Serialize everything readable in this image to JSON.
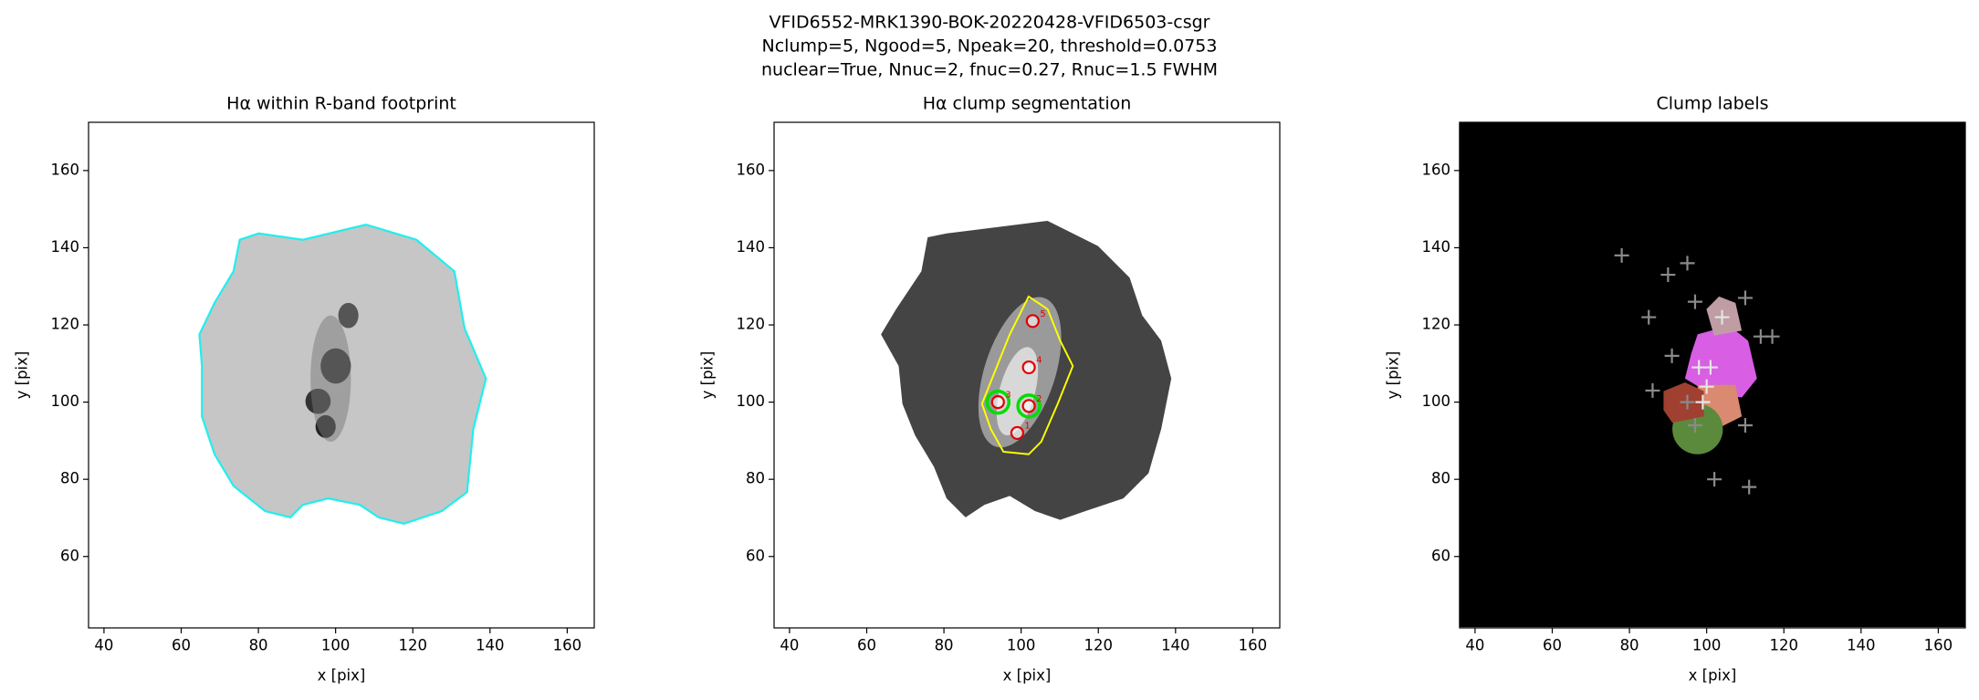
{
  "suptitle": [
    "VFID6552-MRK1390-BOK-20220428-VFID6503-csgr",
    "Nclump=5, Ngood=5, Npeak=20, threshold=0.0753",
    "nuclear=True, Nnuc=2, fnuc=0.27, Rnuc=1.5 FWHM"
  ],
  "chart_data": [
    {
      "type": "image",
      "title": "Hα within R-band footprint",
      "xlabel": "x [pix]",
      "ylabel": "y [pix]",
      "xlim": [
        36,
        167
      ],
      "ylim": [
        41.5,
        172.5
      ],
      "xticks": [
        40,
        60,
        80,
        100,
        120,
        140,
        160
      ],
      "yticks": [
        60,
        80,
        100,
        120,
        140,
        160
      ]
    },
    {
      "type": "image",
      "title": "Hα clump segmentation",
      "xlabel": "x [pix]",
      "ylabel": "y [pix]",
      "xlim": [
        36,
        167
      ],
      "ylim": [
        41.5,
        172.5
      ],
      "xticks": [
        40,
        60,
        80,
        100,
        120,
        140,
        160
      ],
      "yticks": [
        60,
        80,
        100,
        120,
        140,
        160
      ],
      "points": {
        "x": [
          99,
          102,
          94,
          102,
          103
        ],
        "y": [
          92,
          99,
          100,
          109,
          121
        ],
        "labels": [
          "1",
          "2",
          "3",
          "4",
          "5"
        ],
        "color": "#e00000"
      },
      "nuclei": {
        "x": [
          94,
          102
        ],
        "y": [
          100,
          99
        ],
        "color": "#00dd00"
      }
    },
    {
      "type": "image",
      "title": "Clump labels",
      "xlabel": "x [pix]",
      "ylabel": "y [pix]",
      "xlim": [
        36,
        167
      ],
      "ylim": [
        41.5,
        172.5
      ],
      "xticks": [
        40,
        60,
        80,
        100,
        120,
        140,
        160
      ],
      "yticks": [
        60,
        80,
        100,
        120,
        140,
        160
      ],
      "markers": {
        "x": [
          78,
          90,
          95,
          97,
          85,
          110,
          104,
          114,
          117,
          91,
          86,
          95,
          110,
          102,
          111,
          97
        ],
        "y": [
          138,
          133,
          136,
          126,
          122,
          127,
          122,
          117,
          117,
          112,
          103,
          100,
          94,
          80,
          78,
          94
        ],
        "color": "#8a8a8a"
      },
      "centers": {
        "x": [
          98,
          101,
          100,
          99,
          104
        ],
        "y": [
          109,
          109,
          104,
          100,
          122
        ],
        "color": "#e6e6e6"
      }
    }
  ]
}
